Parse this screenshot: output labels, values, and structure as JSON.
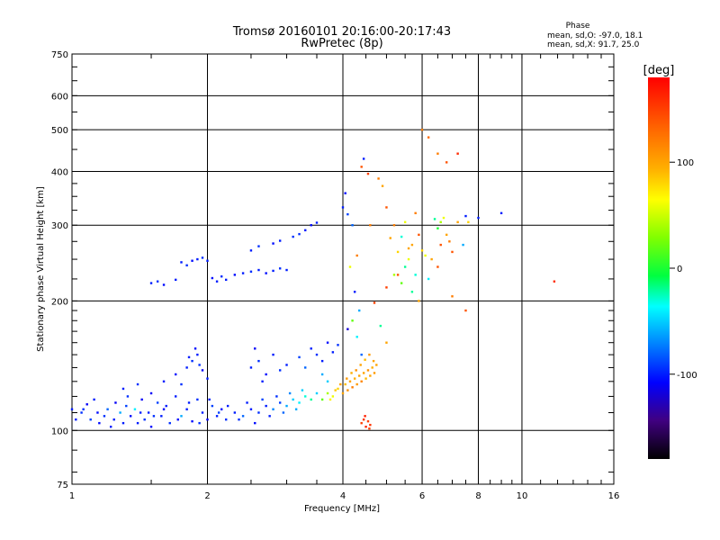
{
  "chart_data": {
    "type": "scatter",
    "title": "Tromsø 20160101 20:16:00-20:17:43",
    "subtitle": "RwPretec (8p)",
    "xlabel": "Frequency [MHz]",
    "ylabel": "Stationary phase Virtual Height [km]",
    "xscale": "log",
    "yscale": "log",
    "xlim": [
      1,
      16
    ],
    "ylim": [
      75,
      750
    ],
    "x_ticks": [
      1,
      2,
      4,
      6,
      8,
      10,
      16
    ],
    "y_ticks": [
      75,
      100,
      200,
      300,
      400,
      500,
      600,
      750
    ],
    "grid": true,
    "phase_box": {
      "title": "Phase",
      "line_o": "mean, sd,O: -97.0, 18.1",
      "line_x": "mean, sd,X:  91.7, 25.0"
    },
    "colorbar": {
      "label": "[deg]",
      "range": [
        -180,
        180
      ],
      "ticks": [
        100,
        0,
        -100
      ]
    },
    "series": [
      {
        "values": [
          [
            1.0,
            112,
            -100
          ],
          [
            1.05,
            110,
            -95
          ],
          [
            1.08,
            115,
            -110
          ],
          [
            1.1,
            106,
            -90
          ],
          [
            1.12,
            118,
            -100
          ],
          [
            1.15,
            104,
            -105
          ],
          [
            1.18,
            108,
            -95
          ],
          [
            1.2,
            112,
            -80
          ],
          [
            1.22,
            102,
            -100
          ],
          [
            1.25,
            116,
            -110
          ],
          [
            1.28,
            110,
            -60
          ],
          [
            1.3,
            104,
            -100
          ],
          [
            1.33,
            120,
            -95
          ],
          [
            1.35,
            108,
            -105
          ],
          [
            1.38,
            112,
            -40
          ],
          [
            1.4,
            104,
            -100
          ],
          [
            1.43,
            118,
            -110
          ],
          [
            1.45,
            106,
            -95
          ],
          [
            1.48,
            110,
            -100
          ],
          [
            1.5,
            102,
            -105
          ],
          [
            1.55,
            116,
            -90
          ],
          [
            1.58,
            108,
            -100
          ],
          [
            1.6,
            112,
            -110
          ],
          [
            1.65,
            104,
            -95
          ],
          [
            1.7,
            120,
            -100
          ],
          [
            1.75,
            108,
            -60
          ],
          [
            1.8,
            112,
            -100
          ],
          [
            1.85,
            105,
            -105
          ],
          [
            1.9,
            118,
            -95
          ],
          [
            1.95,
            110,
            -100
          ],
          [
            2.0,
            106,
            -110
          ],
          [
            2.05,
            114,
            -90
          ],
          [
            2.1,
            108,
            -100
          ],
          [
            2.15,
            112,
            -105
          ],
          [
            2.2,
            106,
            -95
          ],
          [
            2.3,
            110,
            -100
          ],
          [
            2.4,
            108,
            -80
          ],
          [
            2.5,
            112,
            -100
          ],
          [
            2.6,
            110,
            -95
          ],
          [
            2.7,
            114,
            -100
          ],
          [
            2.8,
            112,
            -70
          ],
          [
            2.9,
            116,
            -90
          ],
          [
            3.0,
            114,
            -60
          ],
          [
            3.1,
            118,
            -50
          ],
          [
            3.2,
            116,
            -40
          ],
          [
            3.3,
            120,
            -30
          ],
          [
            3.4,
            118,
            -20
          ],
          [
            3.5,
            122,
            -50
          ],
          [
            1.02,
            106,
            -100
          ],
          [
            1.06,
            112,
            -95
          ],
          [
            1.14,
            110,
            -105
          ],
          [
            1.24,
            106,
            -100
          ],
          [
            1.32,
            114,
            -90
          ],
          [
            1.42,
            110,
            -100
          ],
          [
            1.52,
            108,
            -95
          ],
          [
            1.62,
            114,
            -100
          ],
          [
            1.72,
            106,
            -105
          ],
          [
            1.82,
            116,
            -100
          ],
          [
            1.92,
            104,
            -95
          ],
          [
            2.02,
            118,
            -100
          ],
          [
            2.12,
            110,
            -90
          ],
          [
            2.22,
            114,
            -100
          ],
          [
            2.35,
            106,
            -95
          ],
          [
            2.45,
            116,
            -100
          ],
          [
            2.55,
            104,
            -105
          ],
          [
            2.65,
            118,
            -90
          ],
          [
            2.75,
            108,
            -100
          ],
          [
            2.85,
            120,
            -95
          ],
          [
            2.95,
            110,
            -80
          ],
          [
            3.05,
            122,
            -70
          ],
          [
            3.15,
            112,
            -60
          ],
          [
            3.25,
            124,
            -50
          ],
          [
            1.3,
            125,
            -100
          ],
          [
            1.4,
            128,
            -95
          ],
          [
            1.5,
            122,
            -110
          ],
          [
            1.6,
            130,
            -100
          ],
          [
            1.7,
            135,
            -105
          ],
          [
            1.8,
            140,
            -100
          ],
          [
            1.85,
            145,
            -95
          ],
          [
            1.9,
            150,
            -100
          ],
          [
            1.95,
            138,
            -110
          ],
          [
            2.0,
            132,
            -100
          ],
          [
            1.75,
            128,
            -95
          ],
          [
            1.88,
            155,
            -105
          ],
          [
            1.82,
            148,
            -100
          ],
          [
            1.92,
            142,
            -95
          ],
          [
            2.5,
            140,
            -100
          ],
          [
            2.6,
            145,
            -95
          ],
          [
            2.7,
            135,
            -105
          ],
          [
            2.8,
            150,
            -100
          ],
          [
            2.9,
            138,
            -95
          ],
          [
            3.0,
            142,
            -100
          ],
          [
            2.55,
            155,
            -110
          ],
          [
            2.65,
            130,
            -100
          ],
          [
            3.2,
            148,
            -90
          ],
          [
            3.3,
            140,
            -80
          ],
          [
            3.4,
            155,
            -100
          ],
          [
            3.5,
            150,
            -95
          ],
          [
            3.6,
            145,
            -100
          ],
          [
            3.7,
            160,
            -105
          ],
          [
            3.8,
            152,
            -100
          ],
          [
            3.9,
            158,
            -95
          ],
          [
            3.6,
            135,
            -60
          ],
          [
            3.7,
            130,
            -50
          ],
          [
            1.5,
            220,
            -100
          ],
          [
            1.55,
            222,
            -95
          ],
          [
            1.6,
            218,
            -105
          ],
          [
            1.7,
            224,
            -100
          ],
          [
            1.75,
            246,
            -100
          ],
          [
            1.8,
            242,
            -95
          ],
          [
            1.85,
            248,
            -105
          ],
          [
            1.9,
            250,
            -100
          ],
          [
            1.95,
            252,
            -95
          ],
          [
            2.0,
            248,
            -100
          ],
          [
            2.05,
            226,
            -105
          ],
          [
            2.1,
            222,
            -100
          ],
          [
            2.15,
            228,
            -95
          ],
          [
            2.2,
            224,
            -100
          ],
          [
            2.3,
            230,
            -105
          ],
          [
            2.4,
            232,
            -100
          ],
          [
            2.5,
            234,
            -95
          ],
          [
            2.6,
            236,
            -100
          ],
          [
            2.7,
            232,
            -105
          ],
          [
            2.8,
            235,
            -100
          ],
          [
            2.9,
            238,
            -95
          ],
          [
            3.0,
            236,
            -100
          ],
          [
            2.5,
            262,
            -100
          ],
          [
            2.6,
            268,
            -95
          ],
          [
            2.8,
            272,
            -105
          ],
          [
            2.9,
            276,
            -100
          ],
          [
            3.1,
            282,
            -95
          ],
          [
            3.3,
            292,
            -100
          ],
          [
            3.4,
            300,
            -105
          ],
          [
            3.5,
            304,
            -100
          ],
          [
            3.2,
            286,
            -95
          ],
          [
            3.6,
            118,
            20
          ],
          [
            3.7,
            122,
            40
          ],
          [
            3.8,
            120,
            60
          ],
          [
            3.9,
            125,
            80
          ],
          [
            4.0,
            122,
            100
          ],
          [
            4.05,
            128,
            90
          ],
          [
            4.1,
            124,
            110
          ],
          [
            4.15,
            130,
            100
          ],
          [
            4.2,
            126,
            120
          ],
          [
            4.25,
            132,
            95
          ],
          [
            4.3,
            128,
            105
          ],
          [
            4.35,
            134,
            100
          ],
          [
            4.4,
            130,
            115
          ],
          [
            4.45,
            136,
            100
          ],
          [
            4.5,
            132,
            90
          ],
          [
            4.55,
            138,
            110
          ],
          [
            4.6,
            134,
            100
          ],
          [
            4.65,
            140,
            95
          ],
          [
            4.7,
            136,
            105
          ],
          [
            4.75,
            142,
            100
          ],
          [
            3.75,
            118,
            70
          ],
          [
            3.85,
            124,
            85
          ],
          [
            3.95,
            128,
            100
          ],
          [
            4.08,
            132,
            105
          ],
          [
            4.18,
            136,
            95
          ],
          [
            4.28,
            138,
            110
          ],
          [
            4.38,
            142,
            100
          ],
          [
            4.48,
            146,
            90
          ],
          [
            4.58,
            150,
            105
          ],
          [
            4.68,
            145,
            100
          ],
          [
            4.4,
            104,
            150
          ],
          [
            4.45,
            106,
            155
          ],
          [
            4.5,
            102,
            160
          ],
          [
            4.55,
            105,
            150
          ],
          [
            4.6,
            103,
            155
          ],
          [
            4.48,
            108,
            165
          ],
          [
            4.58,
            101,
            150
          ],
          [
            4.25,
            210,
            -100
          ],
          [
            4.35,
            190,
            -60
          ],
          [
            4.3,
            165,
            -40
          ],
          [
            4.1,
            172,
            -120
          ],
          [
            4.4,
            150,
            -80
          ],
          [
            4.2,
            180,
            20
          ],
          [
            4.15,
            240,
            60
          ],
          [
            4.3,
            255,
            120
          ],
          [
            4.4,
            410,
            140
          ],
          [
            4.55,
            395,
            150
          ],
          [
            4.8,
            385,
            120
          ],
          [
            4.9,
            370,
            100
          ],
          [
            5.0,
            330,
            140
          ],
          [
            5.2,
            300,
            120
          ],
          [
            5.1,
            280,
            100
          ],
          [
            5.3,
            260,
            80
          ],
          [
            5.2,
            230,
            40
          ],
          [
            5.4,
            220,
            20
          ],
          [
            5.5,
            240,
            -20
          ],
          [
            5.6,
            250,
            60
          ],
          [
            5.7,
            270,
            100
          ],
          [
            5.8,
            230,
            -30
          ],
          [
            5.9,
            200,
            100
          ],
          [
            5.0,
            215,
            150
          ],
          [
            4.7,
            198,
            150
          ],
          [
            4.85,
            175,
            -20
          ],
          [
            5.0,
            160,
            100
          ],
          [
            4.0,
            330,
            -100
          ],
          [
            4.05,
            356,
            -105
          ],
          [
            4.1,
            318,
            -90
          ],
          [
            4.2,
            300,
            -80
          ],
          [
            4.45,
            428,
            -100
          ],
          [
            4.6,
            300,
            120
          ],
          [
            6.0,
            500,
            120
          ],
          [
            6.2,
            480,
            130
          ],
          [
            6.4,
            310,
            -20
          ],
          [
            6.5,
            295,
            0
          ],
          [
            6.6,
            305,
            40
          ],
          [
            6.7,
            312,
            60
          ],
          [
            6.8,
            285,
            100
          ],
          [
            6.9,
            275,
            120
          ],
          [
            7.0,
            260,
            140
          ],
          [
            7.2,
            305,
            100
          ],
          [
            7.5,
            315,
            -100
          ],
          [
            7.6,
            305,
            80
          ],
          [
            7.4,
            270,
            -60
          ],
          [
            6.3,
            250,
            100
          ],
          [
            6.5,
            240,
            140
          ],
          [
            6.0,
            262,
            80
          ],
          [
            6.2,
            225,
            -40
          ],
          [
            6.6,
            270,
            140
          ],
          [
            7.0,
            205,
            120
          ],
          [
            7.5,
            190,
            140
          ],
          [
            6.8,
            420,
            140
          ],
          [
            6.5,
            440,
            120
          ],
          [
            7.2,
            440,
            160
          ],
          [
            8.0,
            312,
            -100
          ],
          [
            9.0,
            320,
            -100
          ],
          [
            11.8,
            222,
            160
          ],
          [
            5.8,
            320,
            120
          ],
          [
            5.5,
            305,
            60
          ],
          [
            5.9,
            285,
            140
          ],
          [
            6.1,
            255,
            60
          ],
          [
            5.6,
            265,
            100
          ],
          [
            5.4,
            282,
            -30
          ],
          [
            5.7,
            210,
            -20
          ],
          [
            5.3,
            230,
            140
          ]
        ]
      }
    ]
  }
}
